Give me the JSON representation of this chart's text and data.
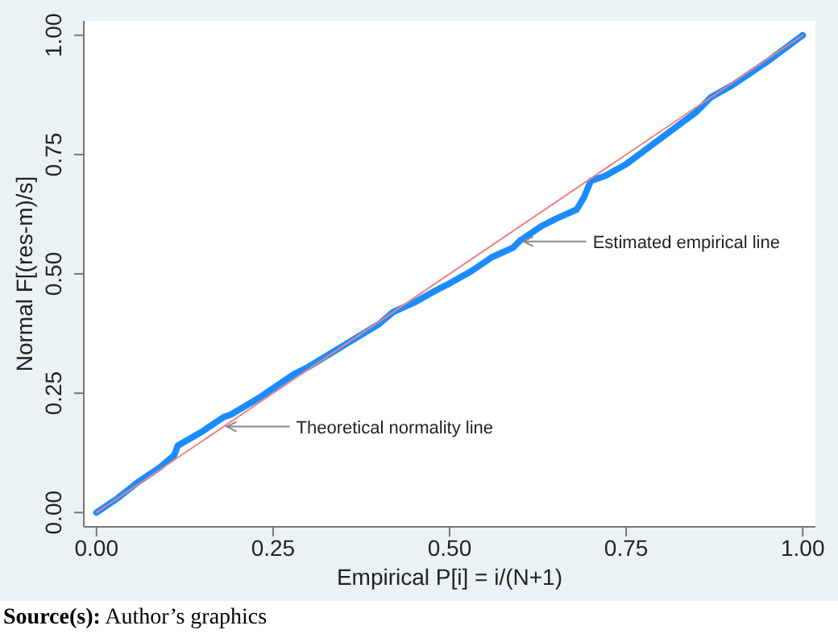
{
  "chart_data": {
    "type": "line",
    "xlabel": "Empirical P[i] = i/(N+1)",
    "ylabel": "Normal F[(res-m)/s]",
    "xlim": [
      -0.018,
      1.018
    ],
    "ylim": [
      -0.03,
      1.03
    ],
    "xticks": [
      {
        "value": 0,
        "label": "0.00"
      },
      {
        "value": 0.25,
        "label": "0.25"
      },
      {
        "value": 0.5,
        "label": "0.50"
      },
      {
        "value": 0.75,
        "label": "0.75"
      },
      {
        "value": 1,
        "label": "1.00"
      }
    ],
    "yticks": [
      {
        "value": 0,
        "label": "0.00"
      },
      {
        "value": 0.25,
        "label": "0.25"
      },
      {
        "value": 0.5,
        "label": "0.50"
      },
      {
        "value": 0.75,
        "label": "0.75"
      },
      {
        "value": 1,
        "label": "1.00"
      }
    ],
    "grid": false,
    "marker": "none",
    "line_style": "solid",
    "series": [
      {
        "color": "#1a8cff",
        "x": [
          0,
          0.03,
          0.06,
          0.09,
          0.11,
          0.115,
          0.15,
          0.18,
          0.19,
          0.23,
          0.25,
          0.28,
          0.3,
          0.35,
          0.4,
          0.42,
          0.45,
          0.48,
          0.5,
          0.53,
          0.56,
          0.59,
          0.6,
          0.63,
          0.65,
          0.68,
          0.69,
          0.7,
          0.72,
          0.75,
          0.8,
          0.85,
          0.87,
          0.9,
          0.93,
          0.95,
          1
        ],
        "values": [
          0,
          0.03,
          0.065,
          0.095,
          0.12,
          0.14,
          0.17,
          0.2,
          0.205,
          0.24,
          0.26,
          0.29,
          0.305,
          0.35,
          0.395,
          0.42,
          0.44,
          0.465,
          0.48,
          0.505,
          0.535,
          0.555,
          0.57,
          0.6,
          0.615,
          0.635,
          0.66,
          0.695,
          0.705,
          0.73,
          0.785,
          0.84,
          0.87,
          0.895,
          0.925,
          0.945,
          1
        ]
      },
      {
        "color": "#f08080",
        "x": [
          0,
          1
        ],
        "values": [
          0,
          1
        ]
      }
    ],
    "annotations": [
      {
        "text": "Estimated empirical line",
        "x": 0.6,
        "y": 0.568
      },
      {
        "text": "Theoretical normality line",
        "x": 0.18,
        "y": 0.18
      },
      "Source(s): Author’s graphics"
    ]
  }
}
